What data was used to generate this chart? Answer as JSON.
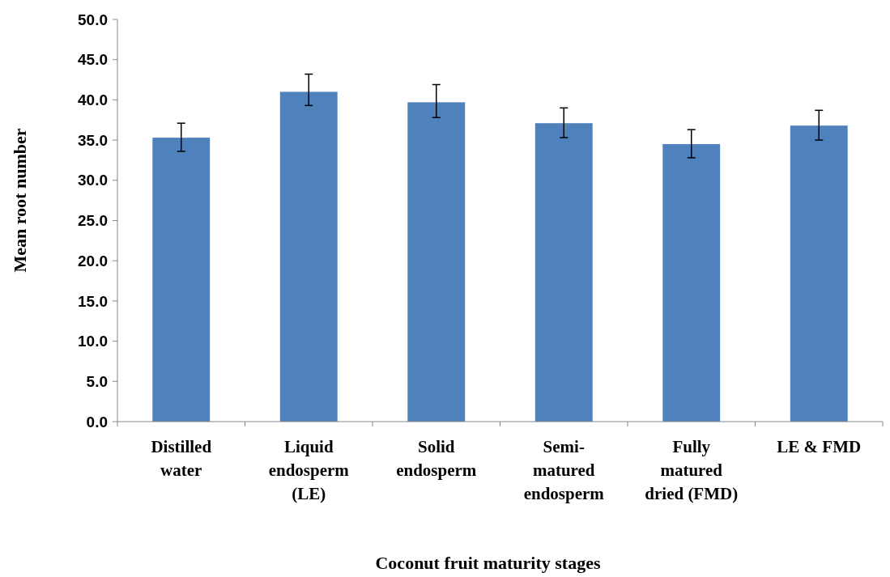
{
  "chart_data": {
    "type": "bar",
    "xlabel": "Coconut fruit maturity stages",
    "ylabel": "Mean root number",
    "categories": [
      "Distilled water",
      "Liquid endosperm (LE)",
      "Solid endosperm",
      "Semi-matured endosperm",
      "Fully matured dried (FMD)",
      "LE & FMD"
    ],
    "values": [
      35.3,
      41.0,
      39.7,
      37.1,
      34.5,
      36.8
    ],
    "errors": [
      [
        33.6,
        37.1
      ],
      [
        39.3,
        43.2
      ],
      [
        37.8,
        41.9
      ],
      [
        35.3,
        39.0
      ],
      [
        32.8,
        36.3
      ],
      [
        35.0,
        38.7
      ]
    ],
    "color": "#4f81bd",
    "ylim": [
      0,
      50
    ],
    "yticks": [
      {
        "value": 0,
        "label": "0.0"
      },
      {
        "value": 5,
        "label": "5.0"
      },
      {
        "value": 10,
        "label": "10.0"
      },
      {
        "value": 15,
        "label": "15.0"
      },
      {
        "value": 20,
        "label": "20.0"
      },
      {
        "value": 25,
        "label": "25.0"
      },
      {
        "value": 30,
        "label": "30.0"
      },
      {
        "value": 35,
        "label": "35.0"
      },
      {
        "value": 40,
        "label": "40.0"
      },
      {
        "value": 45,
        "label": "45.0"
      },
      {
        "value": 50,
        "label": "50.0"
      }
    ],
    "grid": false
  }
}
